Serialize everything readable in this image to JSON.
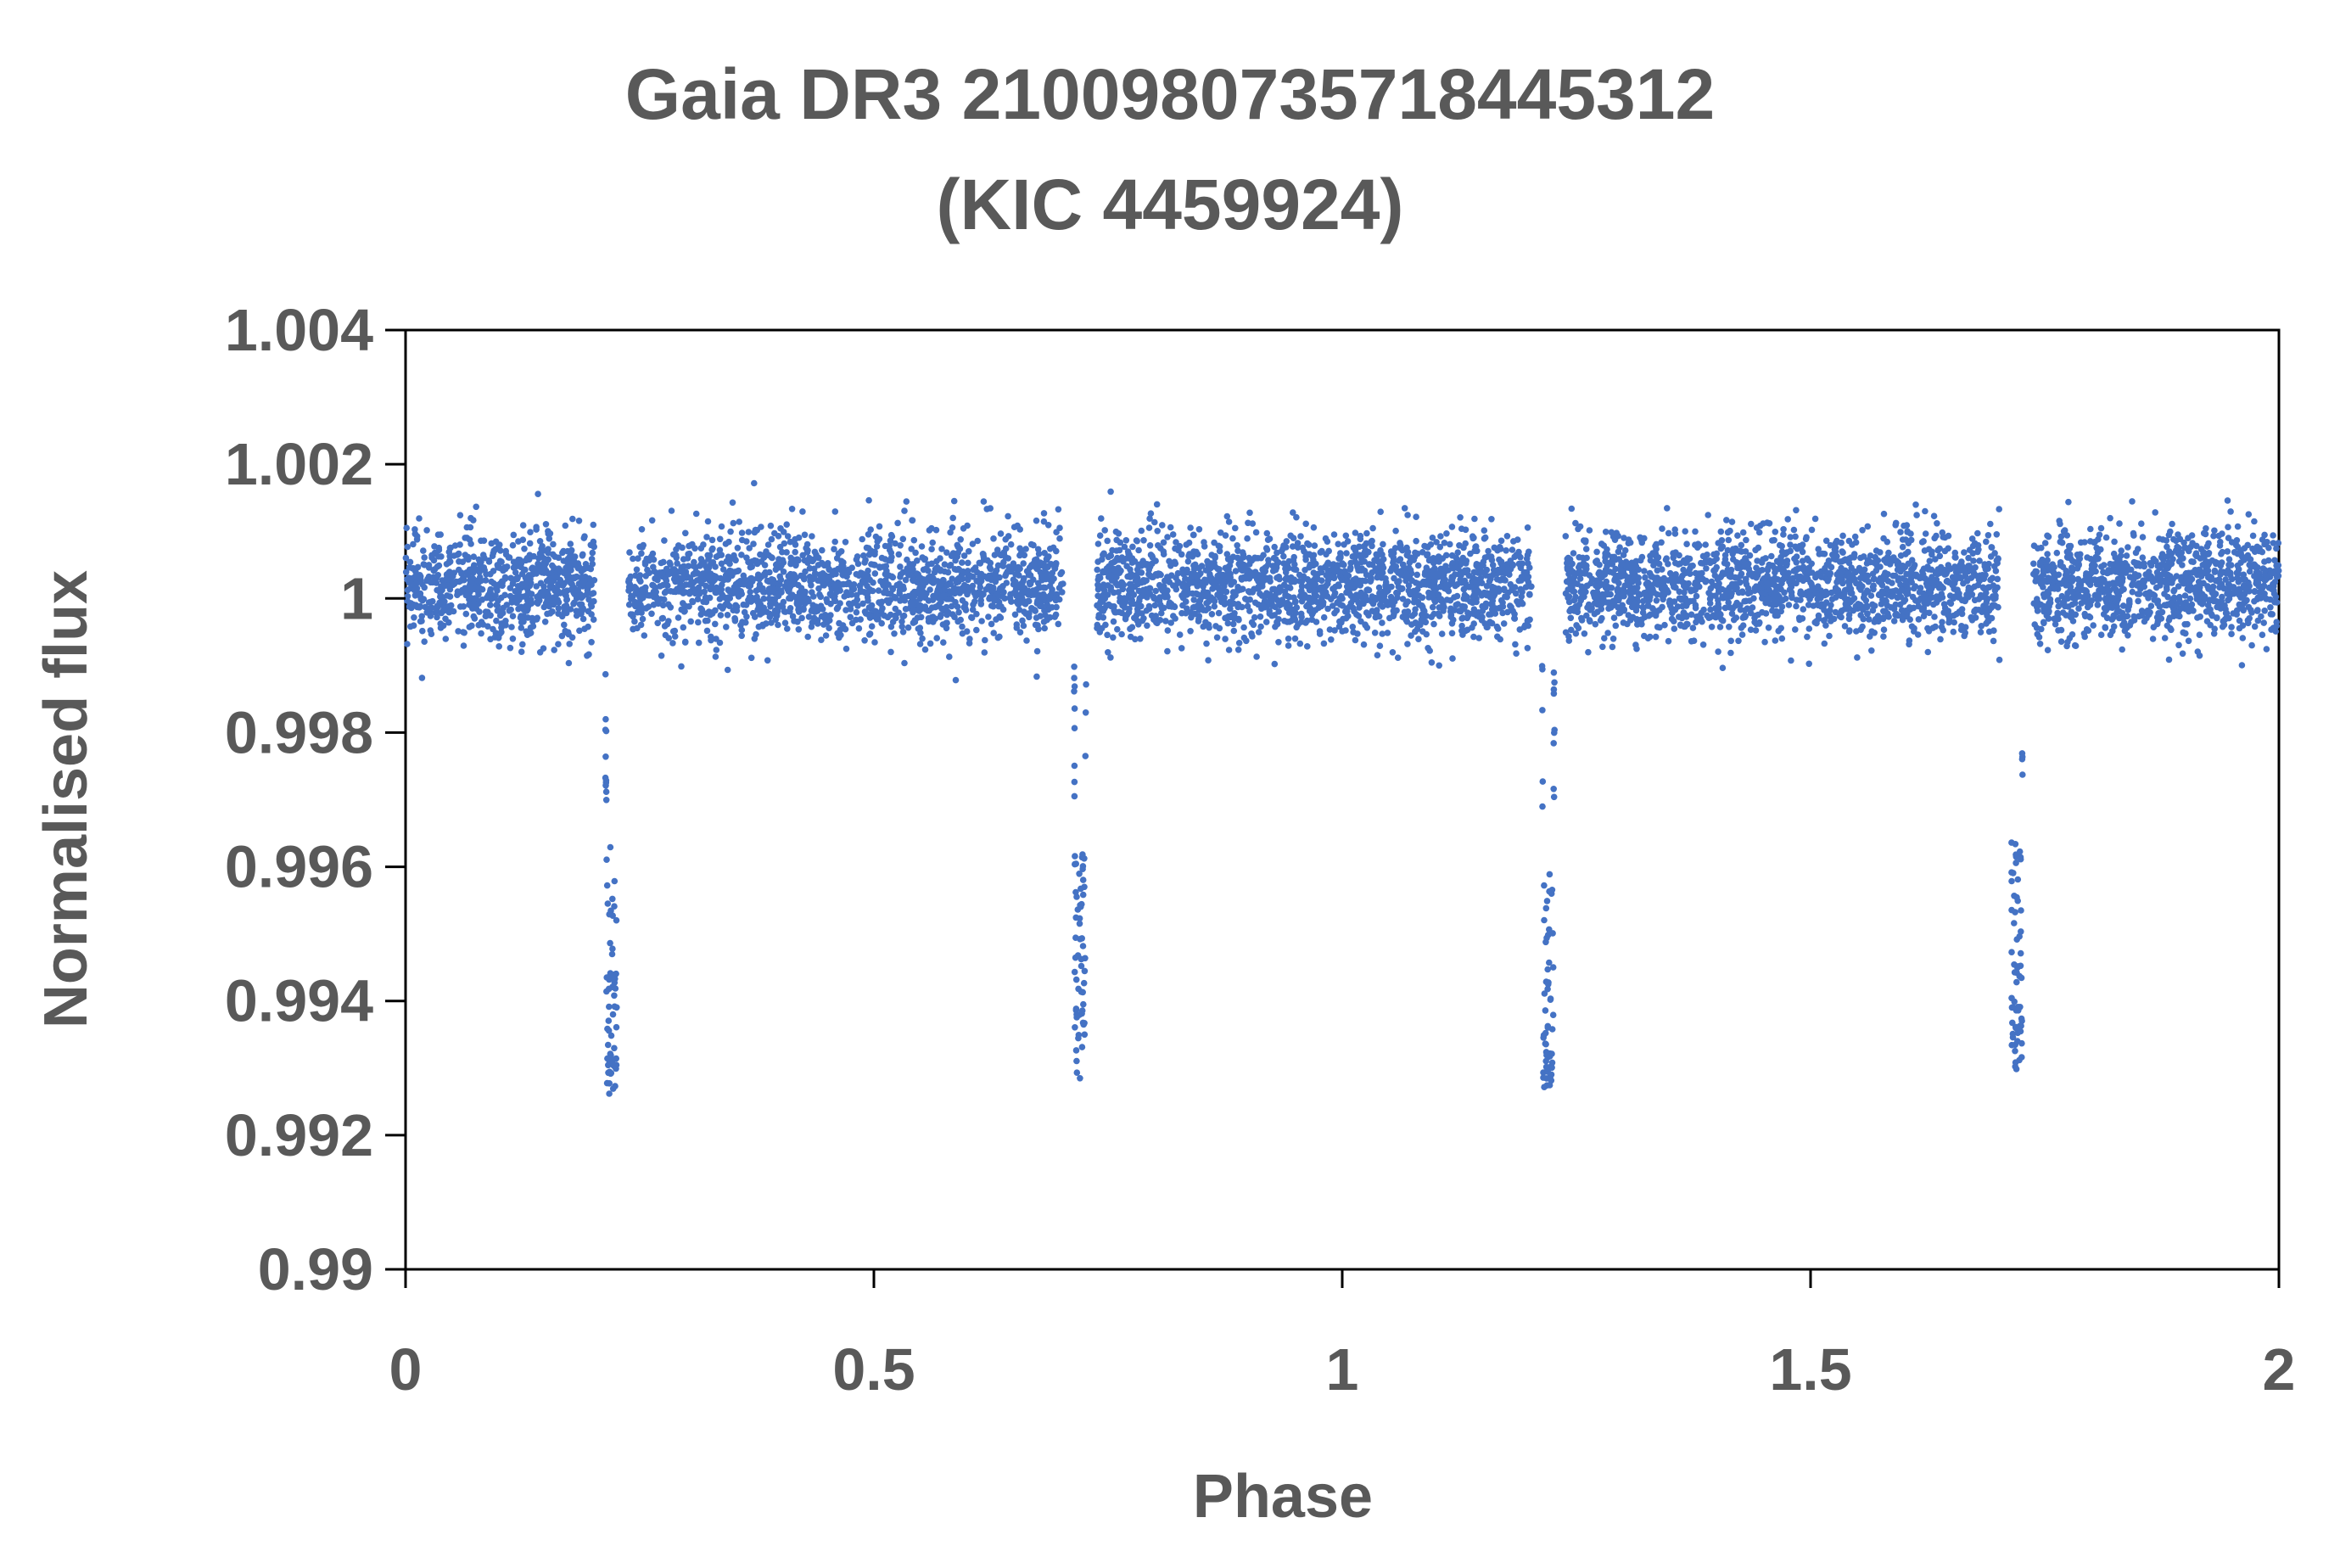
{
  "chart_data": {
    "type": "scatter",
    "title_line1": "Gaia DR3 2100980735718445312",
    "title_line2": "(KIC 4459924)",
    "xlabel": "Phase",
    "ylabel": "Normalised flux",
    "xlim": [
      0,
      2
    ],
    "ylim": [
      0.99,
      1.004
    ],
    "x_ticks": [
      {
        "value": 0,
        "label": "0"
      },
      {
        "value": 0.5,
        "label": "0.5"
      },
      {
        "value": 1,
        "label": "1"
      },
      {
        "value": 1.5,
        "label": "1.5"
      },
      {
        "value": 2,
        "label": "2"
      }
    ],
    "y_ticks": [
      {
        "value": 0.99,
        "label": "0.99"
      },
      {
        "value": 0.992,
        "label": "0.992"
      },
      {
        "value": 0.994,
        "label": "0.994"
      },
      {
        "value": 0.996,
        "label": "0.996"
      },
      {
        "value": 0.998,
        "label": "0.998"
      },
      {
        "value": 1.0,
        "label": "1"
      },
      {
        "value": 1.002,
        "label": "1.002"
      },
      {
        "value": 1.004,
        "label": "1.004"
      }
    ],
    "grid": false,
    "legend": "none",
    "marker_color": "#4472c4",
    "baseline_flux": 1.0002,
    "baseline_scatter": 0.0004,
    "eclipses": [
      {
        "center_phase": 0.22,
        "min_flux": 0.9928
      },
      {
        "center_phase": 0.72,
        "min_flux": 0.9932
      },
      {
        "center_phase": 1.22,
        "min_flux": 0.9928
      },
      {
        "center_phase": 1.72,
        "min_flux": 0.9932
      }
    ],
    "eclipse_half_width": 0.011
  }
}
